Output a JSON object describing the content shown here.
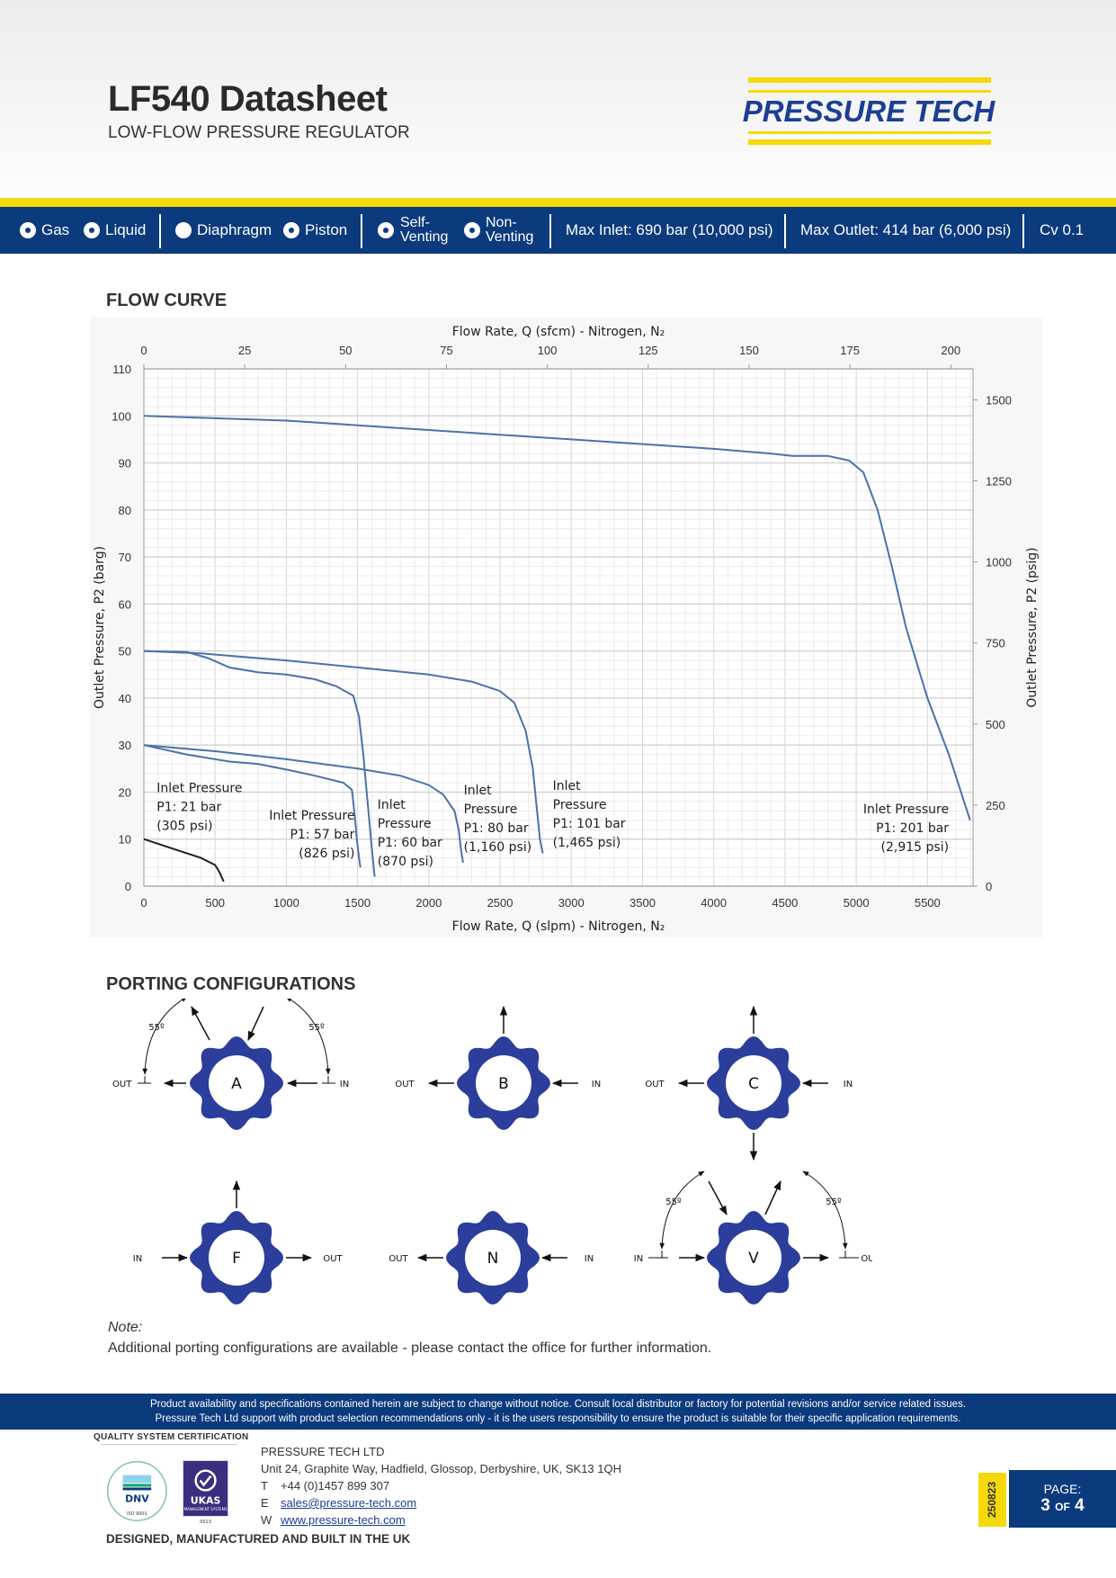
{
  "header": {
    "title": "LF540 Datasheet",
    "subtitle": "LOW-FLOW PRESSURE REGULATOR",
    "logo_text": "PRESSURE TECH"
  },
  "colors": {
    "brand_blue": "#0b3a7d",
    "brand_yellow": "#f5d90a",
    "curve": "#4a72a8",
    "gear": "#2b3e9b"
  },
  "spec_bar": {
    "options": [
      {
        "label": "Gas",
        "marked": true
      },
      {
        "label": "Liquid",
        "marked": true
      },
      {
        "label": "Diaphragm",
        "marked": false
      },
      {
        "label": "Piston",
        "marked": true
      },
      {
        "label": "Self-",
        "label2": "Venting",
        "marked": true
      },
      {
        "label": "Non-",
        "label2": "Venting",
        "marked": true
      }
    ],
    "max_inlet": "Max Inlet: 690 bar (10,000 psi)",
    "max_outlet": "Max Outlet: 414 bar (6,000 psi)",
    "cv": "Cv 0.1"
  },
  "flow_curve": {
    "heading": "FLOW CURVE"
  },
  "chart_data": {
    "type": "line",
    "xlabel": "Flow Rate, Q (slpm) - Nitrogen, N₂",
    "x2label": "Flow Rate, Q (sfcm) - Nitrogen, N₂",
    "ylabel": "Outlet Pressure, P2 (barg)",
    "y2label": "Outlet Pressure, P2 (psig)",
    "xlim": [
      0,
      5820
    ],
    "ylim": [
      0,
      110
    ],
    "xticks": [
      0,
      500,
      1000,
      1500,
      2000,
      2500,
      3000,
      3500,
      4000,
      4500,
      5000,
      5500
    ],
    "yticks": [
      0,
      10,
      20,
      30,
      40,
      50,
      60,
      70,
      80,
      90,
      100,
      110
    ],
    "x2ticks": [
      0,
      25,
      50,
      75,
      100,
      125,
      150,
      175,
      200
    ],
    "y2ticks": [
      0,
      250,
      500,
      750,
      1000,
      1250,
      1500
    ],
    "grid": true,
    "series": [
      {
        "label": [
          "Inlet Pressure",
          "P1: 201 bar",
          "(2,915 psi)"
        ],
        "color": "#4a72a8",
        "x": [
          0,
          500,
          1000,
          1500,
          2000,
          2500,
          3000,
          3500,
          4000,
          4400,
          4550,
          4800,
          4950,
          5050,
          5150,
          5250,
          5350,
          5500,
          5650,
          5800
        ],
        "y": [
          100,
          99.5,
          99,
          98,
          97,
          96,
          95,
          94,
          93,
          92,
          91.5,
          91.5,
          90.5,
          88,
          80,
          68,
          55,
          40,
          28,
          14
        ]
      },
      {
        "label": [
          "Inlet",
          "Pressure",
          "P1: 101 bar",
          "(1,465 psi)"
        ],
        "color": "#4a72a8",
        "x": [
          0,
          400,
          1000,
          1500,
          2000,
          2300,
          2500,
          2600,
          2680,
          2730,
          2760,
          2780,
          2800
        ],
        "y": [
          50,
          49.5,
          48,
          46.5,
          45,
          43.5,
          41.5,
          39,
          33,
          25,
          16,
          10,
          7
        ]
      },
      {
        "label": [
          "Inlet",
          "Pressure",
          "P1: 80 bar",
          "(1,160 psi)"
        ],
        "color": "#4a72a8",
        "x": [
          0,
          500,
          1000,
          1500,
          1800,
          2000,
          2100,
          2180,
          2210,
          2225,
          2240
        ],
        "y": [
          30,
          28.7,
          27,
          25,
          23.5,
          21.5,
          19.5,
          16,
          12,
          8,
          5
        ]
      },
      {
        "label": [
          "Inlet",
          "Pressure",
          "P1: 60 bar",
          "(870 psi)"
        ],
        "color": "#4a72a8",
        "x": [
          0,
          300,
          450,
          600,
          800,
          1000,
          1200,
          1350,
          1470,
          1510,
          1540,
          1570,
          1600,
          1620
        ],
        "y": [
          50,
          49.8,
          48.5,
          46.5,
          45.5,
          45,
          44,
          42.5,
          40.5,
          36,
          28,
          18,
          8,
          2
        ]
      },
      {
        "label": [
          "Inlet Pressure",
          "P1: 57 bar",
          "(826 psi)"
        ],
        "color": "#4a72a8",
        "x": [
          0,
          300,
          600,
          800,
          1000,
          1200,
          1400,
          1460,
          1480,
          1495,
          1510,
          1520
        ],
        "y": [
          30,
          28,
          26.5,
          26,
          24.8,
          23.5,
          22,
          20.5,
          15,
          10,
          6,
          4
        ]
      },
      {
        "label": [
          "Inlet Pressure",
          "P1: 21 bar",
          "(305 psi)"
        ],
        "color": "#1f1f1f",
        "x": [
          0,
          200,
          400,
          500,
          530,
          560
        ],
        "y": [
          10,
          8,
          6,
          4.5,
          3,
          1
        ]
      }
    ]
  },
  "porting": {
    "heading": "PORTING CONFIGURATIONS",
    "angle": "55º",
    "in": "IN",
    "out": "OUT",
    "configs": [
      "A",
      "B",
      "C",
      "F",
      "N",
      "V"
    ]
  },
  "note": {
    "label": "Note:",
    "text": "Additional porting configurations are available - please contact the office for further information."
  },
  "footer": {
    "disclaimer1": "Product availability and specifications contained herein are subject to change without notice. Consult local distributor or factory for potential revisions and/or service related issues.",
    "disclaimer2": "Pressure Tech Ltd support with product selection recommendations only - it is the users responsibility to ensure the product is suitable for their specific application requirements.",
    "cert1": "DNV",
    "cert1_sub": "ISO 9001",
    "cert1_ring": "QUALITY SYSTEM CERTIFICATION",
    "cert2": "UKAS",
    "cert2_sub": "MANAGEMENT SYSTEMS",
    "cert2_num": "0013",
    "company": "PRESSURE TECH LTD",
    "address": "Unit 24, Graphite Way, Hadfield, Glossop, Derbyshire, UK, SK13 1QH",
    "phone_k": "T",
    "phone": "+44 (0)1457 899 307",
    "email_k": "E",
    "email": "sales@pressure-tech.com",
    "web_k": "W",
    "web": "www.pressure-tech.com",
    "made": "DESIGNED, MANUFACTURED AND BUILT IN THE UK",
    "revision": "250823",
    "page_label": "PAGE:",
    "page_num": "3",
    "page_of": "OF",
    "page_total": "4"
  }
}
